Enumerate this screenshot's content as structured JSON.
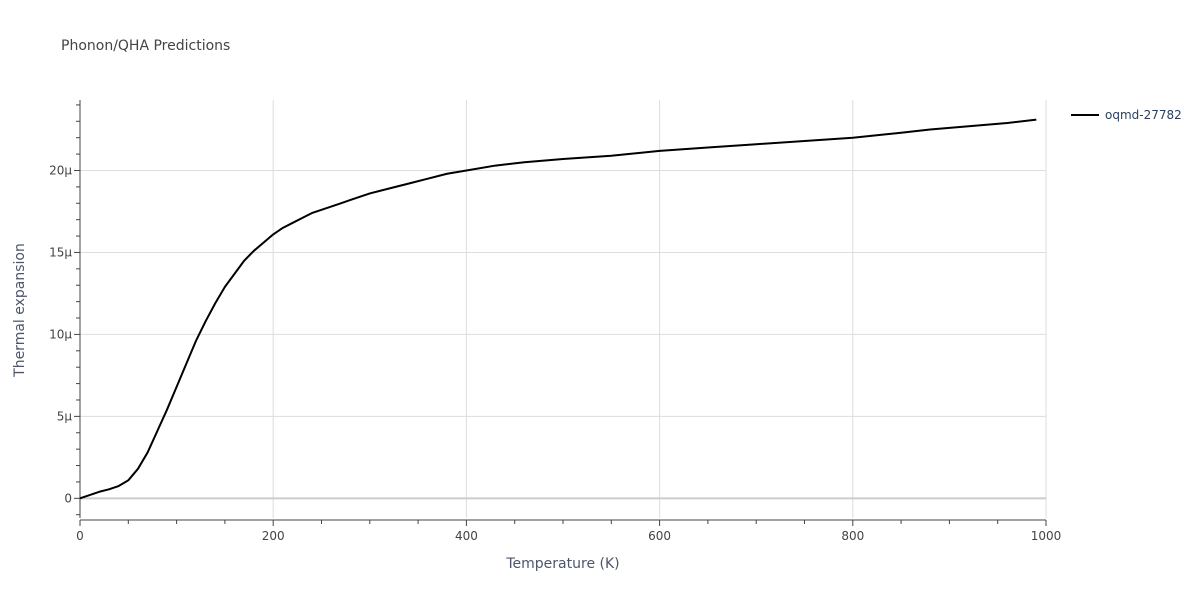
{
  "chart_data": {
    "type": "line",
    "title": "Phonon/QHA Predictions",
    "xlabel": "Temperature (K)",
    "ylabel": "Thermal expansion",
    "xlim": [
      0,
      1000
    ],
    "ylim": [
      -1.2e-06,
      2.43e-05
    ],
    "grid": true,
    "legend_position": "top-right",
    "x_ticks": [
      {
        "value": 0,
        "label": "0"
      },
      {
        "value": 200,
        "label": "200"
      },
      {
        "value": 400,
        "label": "400"
      },
      {
        "value": 600,
        "label": "600"
      },
      {
        "value": 800,
        "label": "800"
      },
      {
        "value": 1000,
        "label": "1000"
      }
    ],
    "y_ticks": [
      {
        "value": 0,
        "label": "0"
      },
      {
        "value": 5e-06,
        "label": "5μ"
      },
      {
        "value": 1e-05,
        "label": "10μ"
      },
      {
        "value": 1.5e-05,
        "label": "15μ"
      },
      {
        "value": 2e-05,
        "label": "20μ"
      }
    ],
    "series": [
      {
        "name": "oqmd-27782",
        "color": "#000000",
        "x": [
          0,
          10,
          20,
          30,
          40,
          50,
          60,
          70,
          80,
          90,
          100,
          110,
          120,
          130,
          140,
          150,
          160,
          170,
          180,
          190,
          200,
          210,
          220,
          230,
          240,
          250,
          260,
          270,
          280,
          290,
          300,
          320,
          340,
          360,
          380,
          400,
          430,
          460,
          500,
          550,
          600,
          650,
          700,
          750,
          800,
          850,
          880,
          920,
          960,
          990
        ],
        "y": [
          0,
          2e-07,
          4e-07,
          5.5e-07,
          7.5e-07,
          1.1e-06,
          1.8e-06,
          2.8e-06,
          4.1e-06,
          5.4e-06,
          6.8e-06,
          8.2e-06,
          9.6e-06,
          1.08e-05,
          1.19e-05,
          1.29e-05,
          1.37e-05,
          1.45e-05,
          1.51e-05,
          1.56e-05,
          1.61e-05,
          1.65e-05,
          1.68e-05,
          1.71e-05,
          1.74e-05,
          1.76e-05,
          1.78e-05,
          1.8e-05,
          1.82e-05,
          1.84e-05,
          1.86e-05,
          1.89e-05,
          1.92e-05,
          1.95e-05,
          1.98e-05,
          2e-05,
          2.03e-05,
          2.05e-05,
          2.07e-05,
          2.09e-05,
          2.12e-05,
          2.14e-05,
          2.16e-05,
          2.18e-05,
          2.2e-05,
          2.23e-05,
          2.25e-05,
          2.27e-05,
          2.29e-05,
          2.31e-05
        ]
      }
    ]
  }
}
